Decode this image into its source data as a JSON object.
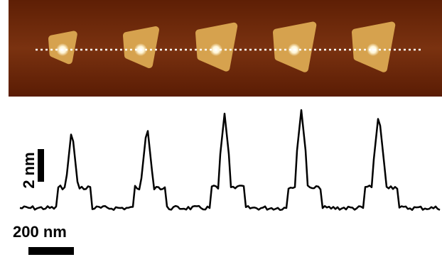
{
  "scale_bars": {
    "height": "2 nm",
    "length": "200 nm"
  }
}
